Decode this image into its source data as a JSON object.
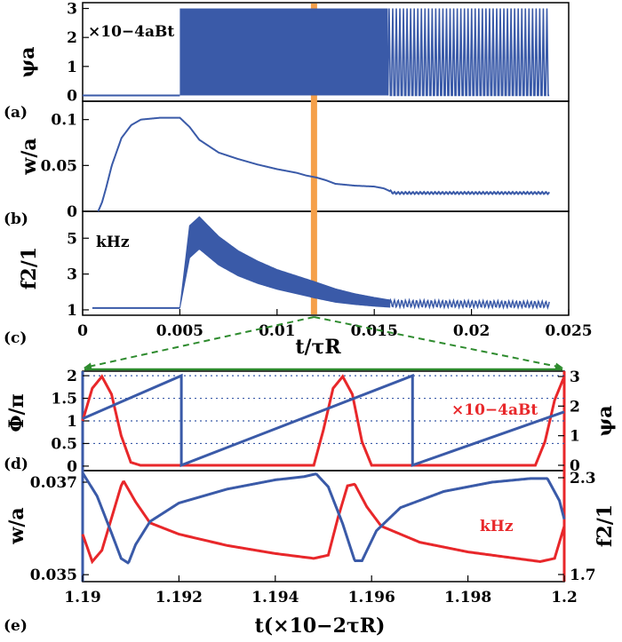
{
  "chart_data": [
    {
      "panel": "(a)",
      "type": "line",
      "ylabel": "ψa",
      "annotation": "×10−4aBt",
      "xlim": [
        0,
        0.025
      ],
      "ylim": [
        -0.2,
        3.2
      ],
      "yticks": [
        0,
        1,
        2,
        3
      ],
      "ytick_labels": [
        "0",
        "1",
        "2",
        "3"
      ],
      "series": [
        {
          "segments": [
            {
              "desc": "flat",
              "x": [
                0,
                0.005
              ],
              "y": [
                0,
                0
              ]
            },
            {
              "desc": "dense oscillation 0-3",
              "x": [
                0.005,
                0.0157
              ],
              "y": [
                0,
                3
              ]
            },
            {
              "desc": "periodic spikes 0-3",
              "x": [
                0.0157,
                0.024
              ],
              "y": [
                0,
                3
              ],
              "count": 45
            }
          ]
        }
      ]
    },
    {
      "panel": "(b)",
      "type": "line",
      "ylabel": "w/a",
      "xlim": [
        0,
        0.025
      ],
      "ylim": [
        0,
        0.12
      ],
      "yticks": [
        0,
        0.05,
        0.1
      ],
      "ytick_labels": [
        "0",
        "0.05",
        "0.1"
      ],
      "series": [
        {
          "x": [
            0.0008,
            0.001,
            0.0012,
            0.0015,
            0.002,
            0.0025,
            0.003,
            0.004,
            0.005,
            0.0055,
            0.006,
            0.007,
            0.008,
            0.009,
            0.01,
            0.011,
            0.0115,
            0.012,
            0.0125,
            0.013,
            0.014,
            0.015,
            0.0155,
            0.0158,
            0.016,
            0.024
          ],
          "y": [
            0,
            0.01,
            0.025,
            0.05,
            0.08,
            0.094,
            0.1,
            0.102,
            0.102,
            0.092,
            0.078,
            0.064,
            0.057,
            0.051,
            0.046,
            0.042,
            0.039,
            0.037,
            0.034,
            0.03,
            0.028,
            0.027,
            0.025,
            0.022,
            0.02,
            0.02
          ]
        }
      ]
    },
    {
      "panel": "(c)",
      "type": "line",
      "ylabel": "f2/1",
      "annotation": "kHz",
      "xlabel": "t/τR",
      "xlim": [
        0,
        0.025
      ],
      "ylim": [
        0.7,
        6.5
      ],
      "yticks": [
        1,
        3,
        5
      ],
      "ytick_labels": [
        "1",
        "3",
        "5"
      ],
      "xticks": [
        0,
        0.005,
        0.01,
        0.015,
        0.02,
        0.025
      ],
      "xtick_labels": [
        "0",
        "0.005",
        "0.01",
        "0.015",
        "0.02",
        "0.025"
      ],
      "series": [
        {
          "desc": "center",
          "x": [
            0.0005,
            0.005,
            0.0055,
            0.006,
            0.007,
            0.008,
            0.009,
            0.01,
            0.011,
            0.012,
            0.013,
            0.014,
            0.015,
            0.0158,
            0.024
          ],
          "y": [
            1.1,
            1.1,
            4.8,
            5.3,
            4.3,
            3.6,
            3.1,
            2.7,
            2.4,
            2.1,
            1.8,
            1.6,
            1.45,
            1.35,
            1.3
          ]
        },
        {
          "desc": "band half-width",
          "x": [
            0.005,
            0.0055,
            0.006,
            0.008,
            0.01,
            0.012,
            0.014,
            0.0158,
            0.024
          ],
          "y": [
            0,
            0.9,
            0.9,
            0.7,
            0.55,
            0.45,
            0.3,
            0.2,
            0.18
          ]
        }
      ],
      "highlight_band": {
        "x": 0.0119,
        "color": "#f5a04a"
      }
    },
    {
      "panel": "(d)",
      "type": "line",
      "ylabel_left": "Φ/π",
      "ylabel_right": "ψa",
      "annotation": "×10−4aBt",
      "xlim": [
        1.19,
        1.2
      ],
      "ylim_left": [
        -0.1,
        2.1
      ],
      "ylim_right": [
        0,
        3
      ],
      "yticks_left": [
        0,
        0.5,
        1,
        1.5,
        2
      ],
      "ytick_labels_left": [
        "0",
        "0.5",
        "1",
        "1.5",
        "2"
      ],
      "yticks_right": [
        0,
        1,
        2,
        3
      ],
      "ytick_labels_right": [
        "0",
        "1",
        "2",
        "3"
      ],
      "grid": "dotted at 0.5 1 1.5 2",
      "series": [
        {
          "name": "Φ/π",
          "color": "#3a5aa8",
          "axis": "left",
          "x": [
            1.19,
            1.19205,
            1.19205,
            1.19685,
            1.19685,
            1.2
          ],
          "y": [
            1.05,
            2.0,
            0.02,
            2.0,
            0.02,
            1.2
          ]
        },
        {
          "name": "ψa",
          "color": "#e8272a",
          "axis": "right",
          "x": [
            1.19,
            1.1902,
            1.1904,
            1.1906,
            1.1908,
            1.191,
            1.1912,
            1.1948,
            1.195,
            1.1952,
            1.1954,
            1.1956,
            1.1958,
            1.196,
            1.1994,
            1.1996,
            1.1998,
            1.2
          ],
          "y": [
            1.5,
            2.6,
            3.0,
            2.4,
            1.0,
            0.1,
            0.0,
            0.0,
            1.2,
            2.6,
            3.0,
            2.4,
            0.8,
            0.0,
            0.0,
            0.8,
            2.2,
            3.0
          ]
        }
      ]
    },
    {
      "panel": "(e)",
      "type": "line",
      "ylabel_left": "w/a",
      "ylabel_right": "f2/1",
      "annotation": "kHz",
      "xlabel": "t(×10−2τR)",
      "xlim": [
        1.19,
        1.2
      ],
      "ylim_left": [
        0.03485,
        0.03725
      ],
      "ylim_right": [
        1.7,
        2.3
      ],
      "yticks_left": [
        0.035,
        0.037
      ],
      "ytick_labels_left": [
        "0.035",
        "0.037"
      ],
      "yticks_right": [
        1.7,
        2.3
      ],
      "ytick_labels_right": [
        "1.7",
        "2.3"
      ],
      "xticks": [
        1.19,
        1.192,
        1.194,
        1.196,
        1.198,
        1.2
      ],
      "xtick_labels": [
        "1.19",
        "1.192",
        "1.194",
        "1.196",
        "1.198",
        "1.2"
      ],
      "series": [
        {
          "name": "w/a",
          "color": "#3a5aa8",
          "axis": "left",
          "x": [
            1.19,
            1.1903,
            1.1906,
            1.1908,
            1.19095,
            1.1911,
            1.1914,
            1.192,
            1.193,
            1.194,
            1.1946,
            1.19485,
            1.1951,
            1.1954,
            1.19565,
            1.1958,
            1.1961,
            1.1966,
            1.1975,
            1.1985,
            1.1993,
            1.19965,
            1.1999,
            1.2
          ],
          "y": [
            0.0372,
            0.0367,
            0.0359,
            0.03535,
            0.03525,
            0.03565,
            0.03615,
            0.03655,
            0.03685,
            0.03705,
            0.03712,
            0.03718,
            0.0369,
            0.0361,
            0.0353,
            0.0353,
            0.03595,
            0.03645,
            0.0368,
            0.037,
            0.03708,
            0.03708,
            0.0366,
            0.0362
          ]
        },
        {
          "name": "f2/1",
          "color": "#e8272a",
          "axis": "right",
          "x": [
            1.19,
            1.1902,
            1.1904,
            1.1906,
            1.1908,
            1.19085,
            1.1911,
            1.1914,
            1.192,
            1.193,
            1.194,
            1.1948,
            1.1951,
            1.1953,
            1.1955,
            1.19565,
            1.1959,
            1.1962,
            1.197,
            1.198,
            1.199,
            1.1995,
            1.1998,
            1.2
          ],
          "y": [
            1.95,
            1.78,
            1.85,
            2.05,
            2.25,
            2.28,
            2.15,
            2.02,
            1.95,
            1.88,
            1.83,
            1.8,
            1.82,
            2.05,
            2.25,
            2.26,
            2.12,
            2.0,
            1.9,
            1.84,
            1.8,
            1.78,
            1.8,
            2.0
          ]
        }
      ]
    }
  ],
  "colors": {
    "blue": "#3a5aa8",
    "red": "#e8272a",
    "orange": "#f5a04a",
    "green": "#2e8b2e"
  },
  "panel_labels": [
    "(a)",
    "(b)",
    "(c)",
    "(d)",
    "(e)"
  ]
}
